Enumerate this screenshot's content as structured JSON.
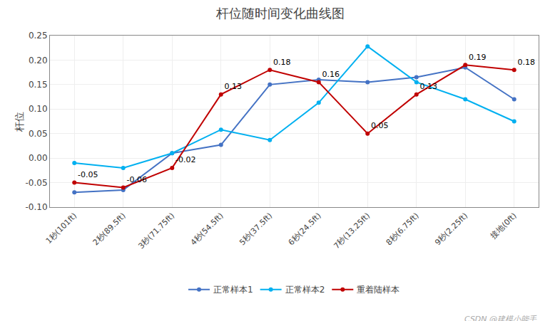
{
  "chart_data": {
    "type": "line",
    "title": "杆位随时间变化曲线图",
    "ylabel": "杆位",
    "categories": [
      "1秒(101ft)",
      "2秒(89.5ft)",
      "3秒(71.75ft)",
      "4秒(54.5ft)",
      "5秒(37.5ft)",
      "6秒(24.5ft)",
      "7秒(13.25ft)",
      "8秒(6.75ft)",
      "9秒(2.25ft)",
      "接地(0ft)"
    ],
    "series": [
      {
        "name": "正常样本1",
        "color": "#4472C4",
        "marker": "circle",
        "values": [
          -0.07,
          -0.065,
          0.01,
          0.027,
          0.15,
          0.16,
          0.155,
          0.165,
          0.185,
          0.12
        ]
      },
      {
        "name": "正常样本2",
        "color": "#00B0F0",
        "marker": "circle",
        "values": [
          -0.01,
          -0.02,
          0.01,
          0.058,
          0.037,
          0.113,
          0.228,
          0.155,
          0.12,
          0.075
        ]
      },
      {
        "name": "重着陆样本",
        "color": "#C00000",
        "marker": "circle",
        "data_labels": true,
        "values": [
          -0.05,
          -0.06,
          -0.02,
          0.13,
          0.18,
          0.155,
          0.05,
          0.13,
          0.19,
          0.18
        ],
        "value_labels": [
          "-0.05",
          "-0.06",
          "-0.02",
          "0.13",
          "0.18",
          "0.16",
          "0.05",
          "0.13",
          "0.19",
          "0.18"
        ]
      }
    ],
    "ylim": [
      -0.1,
      0.25
    ],
    "yticks": [
      {
        "value": -0.1,
        "label": "-0.10"
      },
      -0.05,
      {
        "value": 0.0,
        "label": "0.00"
      },
      0.05,
      {
        "value": 0.1,
        "label": "0.10"
      },
      0.15,
      {
        "value": 0.2,
        "label": "0.20"
      },
      0.25
    ],
    "grid": true,
    "legend": "bottom",
    "annotations": [
      {
        "text": "CSDN @建模小能手"
      }
    ]
  }
}
